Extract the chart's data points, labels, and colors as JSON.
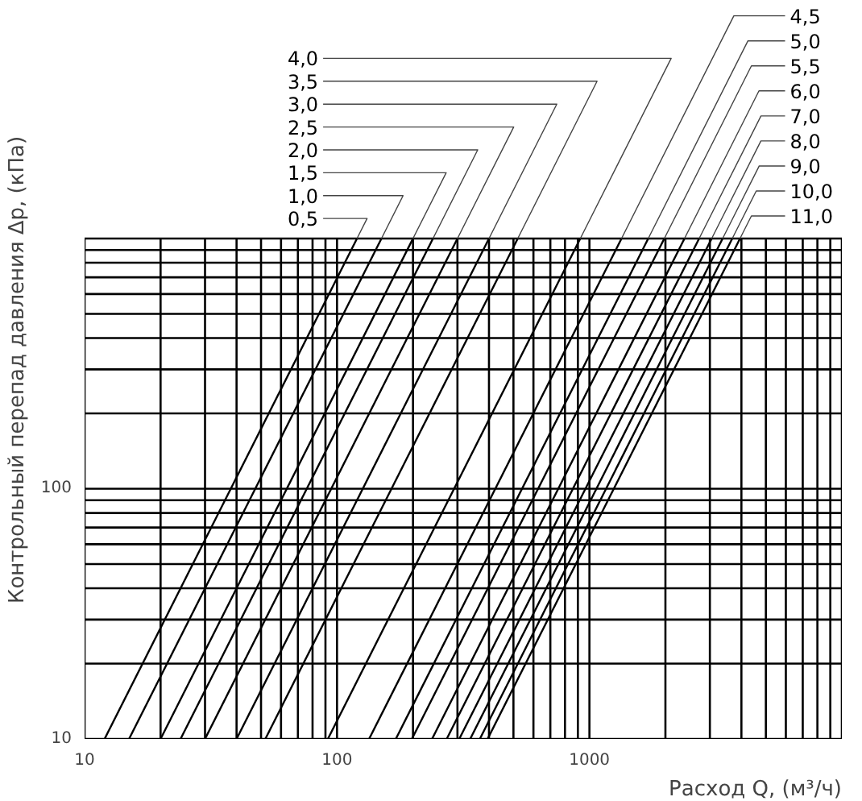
{
  "chart_data": {
    "type": "line",
    "xlabel": "Расход Q, (м³/ч)",
    "ylabel": "Контрольный перепад давления Δp, (кПа)",
    "log": "xy",
    "grid": true,
    "legend": "top",
    "marker": "none",
    "line_style": "solid",
    "xlim": [
      10,
      10000
    ],
    "ylim": [
      10,
      1000
    ],
    "xticks": [
      10,
      {
        "value": 20,
        "label": null
      },
      {
        "value": 30,
        "label": null
      },
      {
        "value": 40,
        "label": null
      },
      {
        "value": 50,
        "label": null
      },
      {
        "value": 60,
        "label": null
      },
      {
        "value": 70,
        "label": null
      },
      {
        "value": 80,
        "label": null
      },
      {
        "value": 90,
        "label": null
      },
      100,
      {
        "value": 200,
        "label": null
      },
      {
        "value": 300,
        "label": null
      },
      {
        "value": 400,
        "label": null
      },
      {
        "value": 500,
        "label": null
      },
      {
        "value": 600,
        "label": null
      },
      {
        "value": 700,
        "label": null
      },
      {
        "value": 800,
        "label": null
      },
      {
        "value": 900,
        "label": null
      },
      1000,
      {
        "value": 2000,
        "label": null
      },
      {
        "value": 3000,
        "label": null
      },
      {
        "value": 4000,
        "label": null
      },
      {
        "value": 5000,
        "label": null
      },
      {
        "value": 6000,
        "label": null
      },
      {
        "value": 7000,
        "label": null
      },
      {
        "value": 8000,
        "label": null
      },
      {
        "value": 9000,
        "label": null
      },
      {
        "value": 10000,
        "label": null
      }
    ],
    "yticks": [
      10,
      {
        "value": 20,
        "label": null
      },
      {
        "value": 30,
        "label": null
      },
      {
        "value": 40,
        "label": null
      },
      {
        "value": 50,
        "label": null
      },
      {
        "value": 60,
        "label": null
      },
      {
        "value": 70,
        "label": null
      },
      {
        "value": 80,
        "label": null
      },
      {
        "value": 90,
        "label": null
      },
      100,
      {
        "value": 200,
        "label": null
      },
      {
        "value": 300,
        "label": null
      },
      {
        "value": 400,
        "label": null
      },
      {
        "value": 500,
        "label": null
      },
      {
        "value": 600,
        "label": null
      },
      {
        "value": 700,
        "label": null
      },
      {
        "value": 800,
        "label": null
      },
      {
        "value": 900,
        "label": null
      },
      {
        "value": 1000,
        "label": null
      }
    ],
    "series": [
      {
        "name": "0,5",
        "color": "#000000",
        "x": [
          12,
          120
        ],
        "values": [
          10,
          1000
        ]
      },
      {
        "name": "1,0",
        "color": "#000000",
        "x": [
          15,
          150
        ],
        "values": [
          10,
          1000
        ]
      },
      {
        "name": "1,5",
        "color": "#000000",
        "x": [
          20,
          200
        ],
        "values": [
          10,
          1000
        ]
      },
      {
        "name": "2,0",
        "color": "#000000",
        "x": [
          24,
          240
        ],
        "values": [
          10,
          1000
        ]
      },
      {
        "name": "2,5",
        "color": "#000000",
        "x": [
          30,
          300
        ],
        "values": [
          10,
          1000
        ]
      },
      {
        "name": "3,0",
        "color": "#000000",
        "x": [
          40,
          400
        ],
        "values": [
          10,
          1000
        ]
      },
      {
        "name": "3,5",
        "color": "#000000",
        "x": [
          52,
          520
        ],
        "values": [
          10,
          1000
        ]
      },
      {
        "name": "4,0",
        "color": "#000000",
        "x": [
          92,
          920
        ],
        "values": [
          10,
          1000
        ]
      },
      {
        "name": "4,5",
        "color": "#000000",
        "x": [
          134,
          1340
        ],
        "values": [
          10,
          1000
        ]
      },
      {
        "name": "5,0",
        "color": "#000000",
        "x": [
          171,
          1710
        ],
        "values": [
          10,
          1000
        ]
      },
      {
        "name": "5,5",
        "color": "#000000",
        "x": [
          198,
          1980
        ],
        "values": [
          10,
          1000
        ]
      },
      {
        "name": "6,0",
        "color": "#000000",
        "x": [
          238,
          2380
        ],
        "values": [
          10,
          1000
        ]
      },
      {
        "name": "7,0",
        "color": "#000000",
        "x": [
          272,
          2720
        ],
        "values": [
          10,
          1000
        ]
      },
      {
        "name": "8,0",
        "color": "#000000",
        "x": [
          305,
          3050
        ],
        "values": [
          10,
          1000
        ]
      },
      {
        "name": "9,0",
        "color": "#000000",
        "x": [
          337,
          3370
        ],
        "values": [
          10,
          1000
        ]
      },
      {
        "name": "10,0",
        "color": "#000000",
        "x": [
          368,
          3680
        ],
        "values": [
          10,
          1000
        ]
      },
      {
        "name": "11,0",
        "color": "#000000",
        "x": [
          395,
          3950
        ],
        "values": [
          10,
          1000
        ]
      }
    ]
  }
}
